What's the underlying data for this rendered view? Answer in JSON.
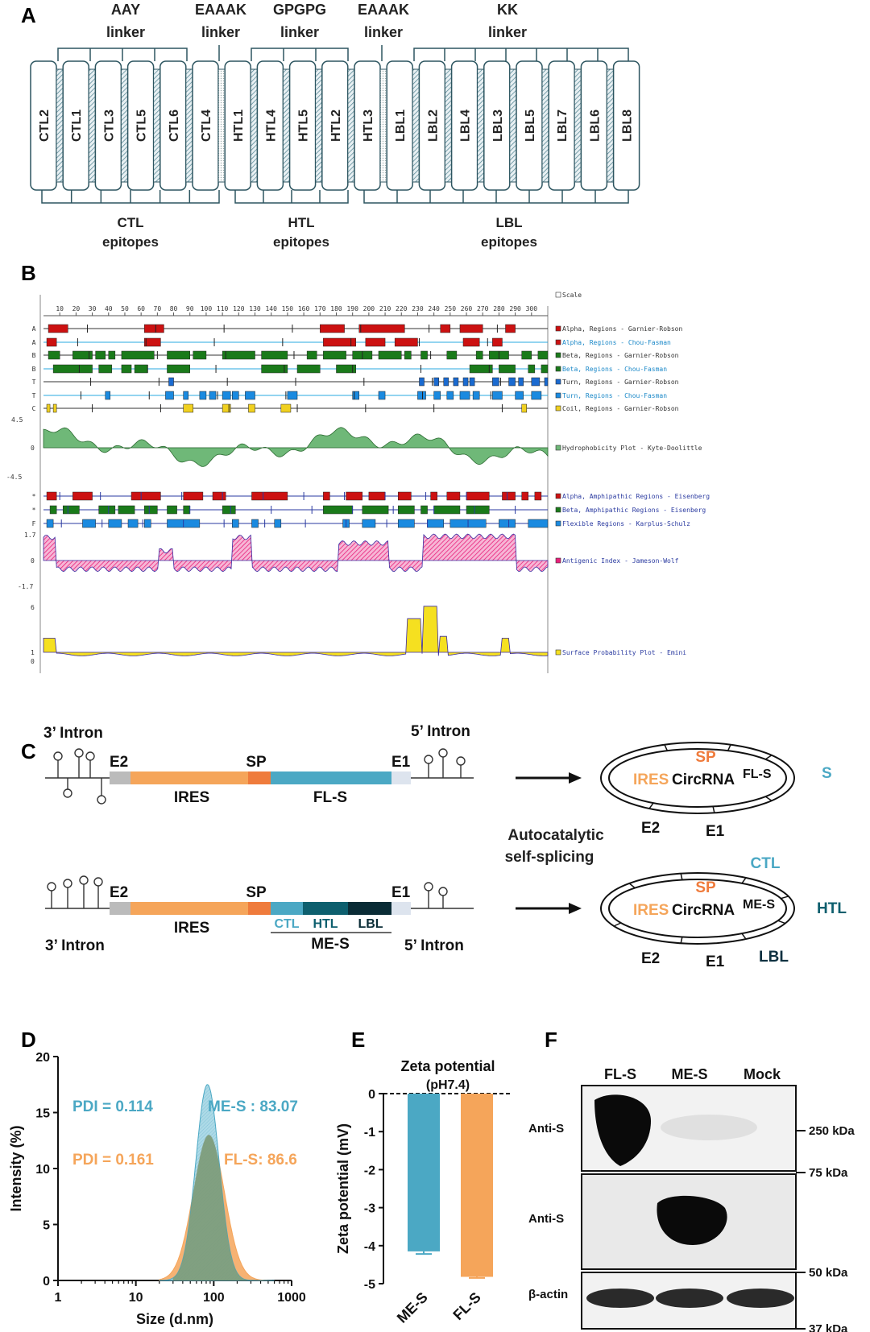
{
  "panels": [
    "A",
    "B",
    "C",
    "D",
    "E",
    "F"
  ],
  "panel_a": {
    "linkers": [
      {
        "l1": "AAY",
        "l2": "linker"
      },
      {
        "l1": "EAAAK",
        "l2": "linker"
      },
      {
        "l1": "GPGPG",
        "l2": "linker"
      },
      {
        "l1": "EAAAK",
        "l2": "linker"
      },
      {
        "l1": "KK",
        "l2": "linker"
      }
    ],
    "blocks": [
      "CTL2",
      "CTL1",
      "CTL3",
      "CTL5",
      "CTL6",
      "CTL4",
      "HTL1",
      "HTL4",
      "HTL5",
      "HTL2",
      "HTL3",
      "LBL1",
      "LBL2",
      "LBL4",
      "LBL3",
      "LBL5",
      "LBL7",
      "LBL6",
      "LBL8"
    ],
    "epitope_groups": [
      {
        "l1": "CTL",
        "l2": "epitopes"
      },
      {
        "l1": "HTL",
        "l2": "epitopes"
      },
      {
        "l1": "LBL",
        "l2": "epitopes"
      }
    ]
  },
  "panel_b": {
    "scale_ticks": [
      "10",
      "20",
      "30",
      "40",
      "50",
      "60",
      "70",
      "80",
      "90",
      "100",
      "110",
      "120",
      "130",
      "140",
      "150",
      "160",
      "170",
      "180",
      "190",
      "200",
      "210",
      "220",
      "230",
      "240",
      "250",
      "260",
      "270",
      "280",
      "290",
      "300"
    ],
    "tracks": [
      {
        "letter": "",
        "legend": "Scale",
        "color": "#ffffff",
        "line": "#999999"
      },
      {
        "letter": "A",
        "legend": "Alpha, Regions - Garnier-Robson",
        "color": "#cc1111",
        "line": "#333333"
      },
      {
        "letter": "A",
        "legend": "Alpha, Regions - Chou-Fasman",
        "color": "#cc1111",
        "line": "#29a8e0"
      },
      {
        "letter": "B",
        "legend": "Beta, Regions - Garnier-Robson",
        "color": "#1a7a1a",
        "line": "#333333"
      },
      {
        "letter": "B",
        "legend": "Beta, Regions - Chou-Fasman",
        "color": "#1a7a1a",
        "line": "#29a8e0"
      },
      {
        "letter": "T",
        "legend": "Turn, Regions - Garnier-Robson",
        "color": "#1a6ad0",
        "line": "#333333"
      },
      {
        "letter": "T",
        "legend": "Turn, Regions - Chou-Fasman",
        "color": "#1a8ae0",
        "line": "#29a8e0"
      },
      {
        "letter": "C",
        "legend": "Coil, Regions - Garnier-Robson",
        "color": "#f0d020",
        "line": "#333333"
      }
    ],
    "legend_colors": [
      "#333333",
      "#29a8e0",
      "#333333",
      "#29a8e0",
      "#333333",
      "#29a8e0",
      "#333333"
    ],
    "hydro": {
      "legend": "Hydrophobicity Plot - Kyte-Doolittle",
      "ymax": "4.5",
      "yzero": "0",
      "ymin": "-4.5",
      "fill": "#6fb878"
    },
    "tracks2": [
      {
        "letter": "*",
        "legend": "Alpha, Amphipathic Regions - Eisenberg",
        "color": "#cc1111"
      },
      {
        "letter": "*",
        "legend": "Beta, Amphipathic Regions - Eisenberg",
        "color": "#1a7a1a"
      },
      {
        "letter": "F",
        "legend": "Flexible Regions - Karplus-Schulz",
        "color": "#1a8ae0"
      }
    ],
    "antigen": {
      "legend": "Antigenic Index - Jameson-Wolf",
      "ymax": "1.7",
      "yzero": "0",
      "ymin": "-1.7",
      "fill": "#e8207a"
    },
    "surface": {
      "legend": "Surface Probability Plot - Emini",
      "ymax": "6",
      "yone": "1",
      "yzero": "0",
      "fill": "#f5e020"
    }
  },
  "panel_c": {
    "top": {
      "intron_left": "3’ Intron",
      "intron_right": "5’ Intron",
      "e2": "E2",
      "sp": "SP",
      "e1": "E1",
      "ires": "IRES",
      "cds": "FL-S"
    },
    "bottom": {
      "intron_left": "3’ Intron",
      "intron_right": "5’ Intron",
      "e2": "E2",
      "sp": "SP",
      "e1": "E1",
      "ires": "IRES",
      "cds": "ME-S",
      "sub": [
        "CTL",
        "HTL",
        "LBL"
      ]
    },
    "process": {
      "l1": "Autocatalytic",
      "l2": "self-splicing"
    },
    "circ1": {
      "sp": "SP",
      "ires": "IRES",
      "name": "CircRNA",
      "sup": "FL-S",
      "s": "S",
      "e2": "E2",
      "e1": "E1"
    },
    "circ2": {
      "ctl": "CTL",
      "sp": "SP",
      "ires": "IRES",
      "name": "CircRNA",
      "sup": "ME-S",
      "htl": "HTL",
      "e2": "E2",
      "e1": "E1",
      "lbl": "LBL"
    },
    "colors": {
      "ires": "#f5a55a",
      "sp": "#ef7b3c",
      "fls": "#4ba8c4",
      "ctl": "#4ba8c4",
      "htl": "#0d5f6e",
      "lbl": "#0a2c36",
      "exon": "#bbbbbb",
      "e1": "#dde4ee"
    }
  },
  "panel_d": {
    "ylabel": "Intensity (%)",
    "xlabel": "Size (d.nm)",
    "yticks": [
      "0",
      "5",
      "10",
      "15",
      "20"
    ],
    "xticks": [
      "1",
      "10",
      "100",
      "1000"
    ],
    "pdi_mes": "PDI = 0.114",
    "pdi_fls": "PDI = 0.161",
    "lbl_mes": "ME-S : 83.07",
    "lbl_fls": "FL-S: 86.6",
    "color_mes": "#4ba8c4",
    "color_fls": "#f5a55a"
  },
  "panel_e": {
    "title": "Zeta potential",
    "subtitle": "(pH7.4)",
    "ylabel": "Zeta potential (mV)",
    "yticks": [
      "0",
      "-1",
      "-2",
      "-3",
      "-4",
      "-5"
    ]
  },
  "panel_f": {
    "lanes": [
      "FL-S",
      "ME-S",
      "Mock"
    ],
    "rows": [
      "Anti-S",
      "Anti-S",
      "β-actin"
    ],
    "markers": [
      "250 kDa",
      "75 kDa",
      "50 kDa",
      "37 kDa"
    ]
  },
  "chart_data": [
    {
      "type": "area",
      "panel": "D",
      "xlabel": "Size (d.nm)",
      "ylabel": "Intensity (%)",
      "x_scale": "log",
      "xlim": [
        1,
        1000
      ],
      "ylim": [
        0,
        20
      ],
      "series": [
        {
          "name": "ME-S",
          "peak_x": 83.07,
          "peak_y": 17.5,
          "pdi": 0.114
        },
        {
          "name": "FL-S",
          "peak_x": 86.6,
          "peak_y": 13,
          "pdi": 0.161
        }
      ]
    },
    {
      "type": "bar",
      "panel": "E",
      "title": "Zeta potential",
      "ylabel": "Zeta potential (mV)",
      "ylim": [
        -5,
        0
      ],
      "categories": [
        "ME-S",
        "FL-S"
      ],
      "values": [
        -4.15,
        -4.82
      ],
      "errors": [
        0.07,
        0.03
      ],
      "colors": [
        "#4ba8c4",
        "#f5a55a"
      ]
    }
  ]
}
